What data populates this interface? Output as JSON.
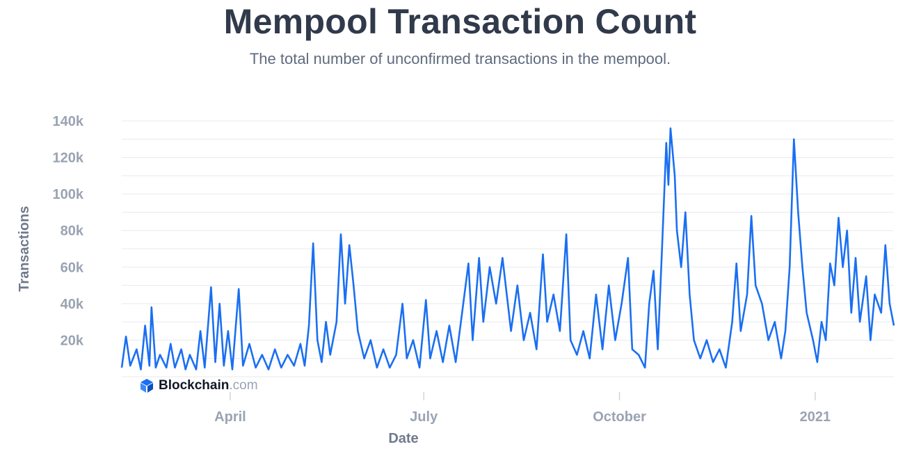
{
  "colors": {
    "line": "#1a6ff2",
    "grid": "#e6e9ee",
    "tick_text": "#9aa3b2",
    "title": "#303a4b"
  },
  "watermark": {
    "brand": "Blockchain",
    "tld": ".com",
    "icon": "blockchain-logo-icon"
  },
  "chart_data": {
    "type": "line",
    "title": "Mempool Transaction Count",
    "subtitle": "The total number of unconfirmed transactions in the mempool.",
    "xlabel": "Date",
    "ylabel": "Transactions",
    "xlim": [
      "2020-02-10",
      "2021-02-07"
    ],
    "ylim": [
      0,
      140000
    ],
    "grid": true,
    "legend": "none",
    "x_ticks": [
      {
        "date": "2020-04-01",
        "label": "April"
      },
      {
        "date": "2020-07-01",
        "label": "July"
      },
      {
        "date": "2020-10-01",
        "label": "October"
      },
      {
        "date": "2021-01-01",
        "label": "2021"
      }
    ],
    "y_ticks": [
      {
        "value": 20000,
        "label": "20k"
      },
      {
        "value": 40000,
        "label": "40k"
      },
      {
        "value": 60000,
        "label": "60k"
      },
      {
        "value": 80000,
        "label": "80k"
      },
      {
        "value": 100000,
        "label": "100k"
      },
      {
        "value": 120000,
        "label": "120k"
      },
      {
        "value": 140000,
        "label": "140k"
      }
    ],
    "series": [
      {
        "values": [
          [
            "2020-02-10",
            5000
          ],
          [
            "2020-02-12",
            22000
          ],
          [
            "2020-02-14",
            6000
          ],
          [
            "2020-02-17",
            15000
          ],
          [
            "2020-02-19",
            4000
          ],
          [
            "2020-02-21",
            28000
          ],
          [
            "2020-02-23",
            6000
          ],
          [
            "2020-02-24",
            38000
          ],
          [
            "2020-02-26",
            5000
          ],
          [
            "2020-02-28",
            12000
          ],
          [
            "2020-03-02",
            5000
          ],
          [
            "2020-03-04",
            18000
          ],
          [
            "2020-03-06",
            5000
          ],
          [
            "2020-03-09",
            15000
          ],
          [
            "2020-03-11",
            4000
          ],
          [
            "2020-03-13",
            12000
          ],
          [
            "2020-03-16",
            4000
          ],
          [
            "2020-03-18",
            25000
          ],
          [
            "2020-03-20",
            5000
          ],
          [
            "2020-03-23",
            49000
          ],
          [
            "2020-03-25",
            8000
          ],
          [
            "2020-03-27",
            40000
          ],
          [
            "2020-03-29",
            6000
          ],
          [
            "2020-03-31",
            25000
          ],
          [
            "2020-04-02",
            4000
          ],
          [
            "2020-04-05",
            48000
          ],
          [
            "2020-04-07",
            6000
          ],
          [
            "2020-04-10",
            18000
          ],
          [
            "2020-04-13",
            5000
          ],
          [
            "2020-04-16",
            12000
          ],
          [
            "2020-04-19",
            4000
          ],
          [
            "2020-04-22",
            15000
          ],
          [
            "2020-04-25",
            5000
          ],
          [
            "2020-04-28",
            12000
          ],
          [
            "2020-05-01",
            6000
          ],
          [
            "2020-05-04",
            18000
          ],
          [
            "2020-05-06",
            6000
          ],
          [
            "2020-05-08",
            28000
          ],
          [
            "2020-05-10",
            73000
          ],
          [
            "2020-05-12",
            20000
          ],
          [
            "2020-05-14",
            8000
          ],
          [
            "2020-05-16",
            30000
          ],
          [
            "2020-05-18",
            12000
          ],
          [
            "2020-05-21",
            30000
          ],
          [
            "2020-05-23",
            78000
          ],
          [
            "2020-05-25",
            40000
          ],
          [
            "2020-05-27",
            72000
          ],
          [
            "2020-05-29",
            50000
          ],
          [
            "2020-05-31",
            25000
          ],
          [
            "2020-06-03",
            10000
          ],
          [
            "2020-06-06",
            20000
          ],
          [
            "2020-06-09",
            5000
          ],
          [
            "2020-06-12",
            15000
          ],
          [
            "2020-06-15",
            5000
          ],
          [
            "2020-06-18",
            12000
          ],
          [
            "2020-06-21",
            40000
          ],
          [
            "2020-06-23",
            10000
          ],
          [
            "2020-06-26",
            20000
          ],
          [
            "2020-06-29",
            5000
          ],
          [
            "2020-07-02",
            42000
          ],
          [
            "2020-07-04",
            10000
          ],
          [
            "2020-07-07",
            25000
          ],
          [
            "2020-07-10",
            8000
          ],
          [
            "2020-07-13",
            28000
          ],
          [
            "2020-07-16",
            8000
          ],
          [
            "2020-07-19",
            35000
          ],
          [
            "2020-07-22",
            62000
          ],
          [
            "2020-07-24",
            20000
          ],
          [
            "2020-07-27",
            65000
          ],
          [
            "2020-07-29",
            30000
          ],
          [
            "2020-08-01",
            60000
          ],
          [
            "2020-08-04",
            40000
          ],
          [
            "2020-08-07",
            65000
          ],
          [
            "2020-08-09",
            45000
          ],
          [
            "2020-08-11",
            25000
          ],
          [
            "2020-08-14",
            50000
          ],
          [
            "2020-08-17",
            20000
          ],
          [
            "2020-08-20",
            35000
          ],
          [
            "2020-08-23",
            15000
          ],
          [
            "2020-08-26",
            67000
          ],
          [
            "2020-08-28",
            30000
          ],
          [
            "2020-08-31",
            45000
          ],
          [
            "2020-09-03",
            25000
          ],
          [
            "2020-09-06",
            78000
          ],
          [
            "2020-09-08",
            20000
          ],
          [
            "2020-09-11",
            12000
          ],
          [
            "2020-09-14",
            25000
          ],
          [
            "2020-09-17",
            10000
          ],
          [
            "2020-09-20",
            45000
          ],
          [
            "2020-09-23",
            15000
          ],
          [
            "2020-09-26",
            50000
          ],
          [
            "2020-09-29",
            20000
          ],
          [
            "2020-10-02",
            40000
          ],
          [
            "2020-10-05",
            65000
          ],
          [
            "2020-10-07",
            15000
          ],
          [
            "2020-10-10",
            12000
          ],
          [
            "2020-10-13",
            5000
          ],
          [
            "2020-10-15",
            40000
          ],
          [
            "2020-10-17",
            58000
          ],
          [
            "2020-10-19",
            15000
          ],
          [
            "2020-10-21",
            70000
          ],
          [
            "2020-10-23",
            128000
          ],
          [
            "2020-10-24",
            105000
          ],
          [
            "2020-10-25",
            136000
          ],
          [
            "2020-10-27",
            110000
          ],
          [
            "2020-10-28",
            80000
          ],
          [
            "2020-10-30",
            60000
          ],
          [
            "2020-11-01",
            90000
          ],
          [
            "2020-11-03",
            45000
          ],
          [
            "2020-11-05",
            20000
          ],
          [
            "2020-11-08",
            10000
          ],
          [
            "2020-11-11",
            20000
          ],
          [
            "2020-11-14",
            8000
          ],
          [
            "2020-11-17",
            15000
          ],
          [
            "2020-11-20",
            5000
          ],
          [
            "2020-11-23",
            30000
          ],
          [
            "2020-11-25",
            62000
          ],
          [
            "2020-11-27",
            25000
          ],
          [
            "2020-11-30",
            45000
          ],
          [
            "2020-12-02",
            88000
          ],
          [
            "2020-12-04",
            50000
          ],
          [
            "2020-12-07",
            40000
          ],
          [
            "2020-12-10",
            20000
          ],
          [
            "2020-12-13",
            30000
          ],
          [
            "2020-12-16",
            10000
          ],
          [
            "2020-12-18",
            25000
          ],
          [
            "2020-12-20",
            60000
          ],
          [
            "2020-12-22",
            130000
          ],
          [
            "2020-12-24",
            90000
          ],
          [
            "2020-12-26",
            60000
          ],
          [
            "2020-12-28",
            35000
          ],
          [
            "2020-12-31",
            20000
          ],
          [
            "2021-01-02",
            8000
          ],
          [
            "2021-01-04",
            30000
          ],
          [
            "2021-01-06",
            20000
          ],
          [
            "2021-01-08",
            62000
          ],
          [
            "2021-01-10",
            50000
          ],
          [
            "2021-01-12",
            87000
          ],
          [
            "2021-01-14",
            60000
          ],
          [
            "2021-01-16",
            80000
          ],
          [
            "2021-01-18",
            35000
          ],
          [
            "2021-01-20",
            65000
          ],
          [
            "2021-01-22",
            30000
          ],
          [
            "2021-01-25",
            55000
          ],
          [
            "2021-01-27",
            20000
          ],
          [
            "2021-01-29",
            45000
          ],
          [
            "2021-02-01",
            35000
          ],
          [
            "2021-02-03",
            72000
          ],
          [
            "2021-02-05",
            40000
          ],
          [
            "2021-02-07",
            28000
          ]
        ]
      }
    ]
  }
}
